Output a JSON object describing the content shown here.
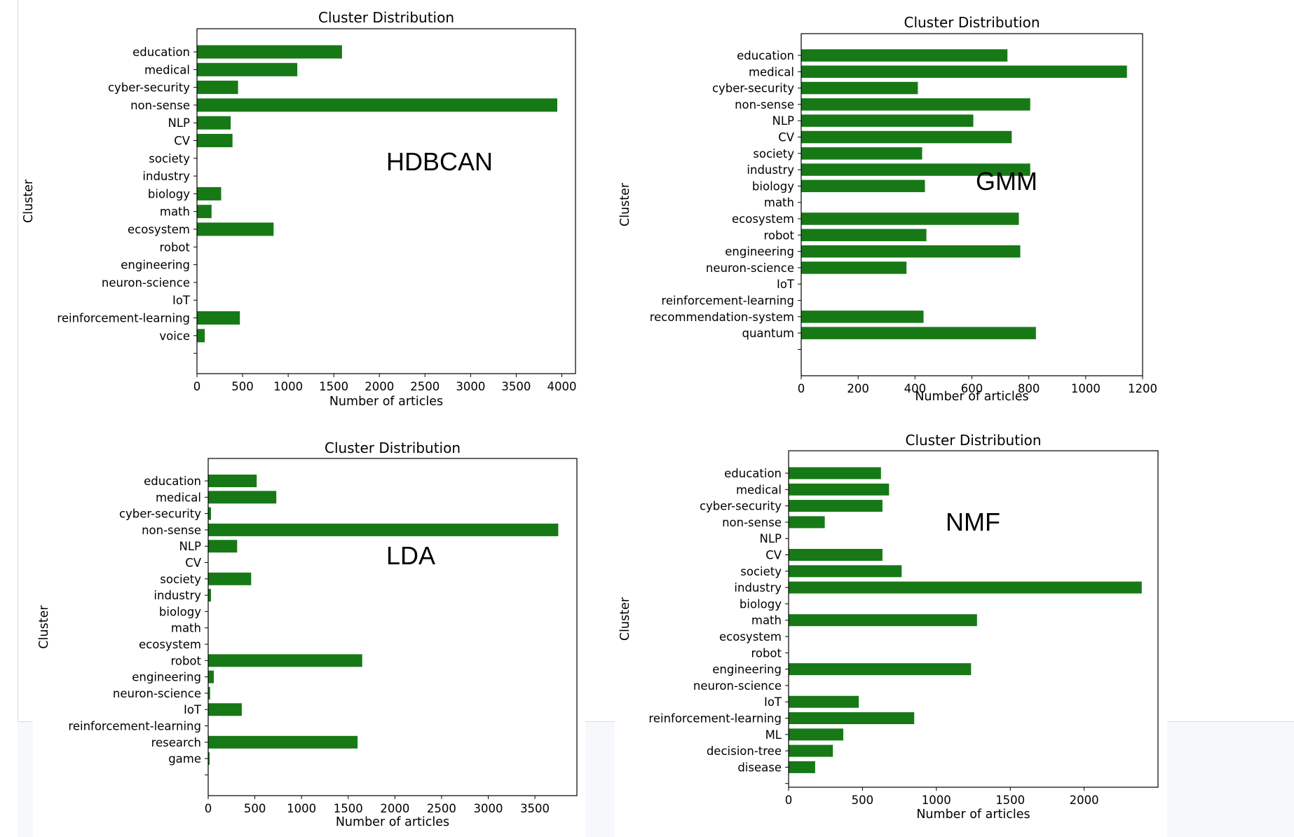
{
  "chart_data": [
    {
      "type": "bar",
      "orientation": "horizontal",
      "title": "Cluster Distribution",
      "annotation": "HDBCAN",
      "xlabel": "Number of articles",
      "ylabel": "Cluster",
      "xlim": [
        0,
        4150
      ],
      "xticks": [
        0,
        500,
        1000,
        1500,
        2000,
        2500,
        3000,
        3500,
        4000
      ],
      "categories": [
        "education",
        "medical",
        "cyber-security",
        "non-sense",
        "NLP",
        "CV",
        "society",
        "industry",
        "biology",
        "math",
        "ecosystem",
        "robot",
        "engineering",
        "neuron-science",
        "IoT",
        "reinforcement-learning",
        "voice",
        ""
      ],
      "values": [
        1590,
        1100,
        450,
        3950,
        370,
        390,
        0,
        0,
        265,
        160,
        840,
        0,
        0,
        0,
        0,
        470,
        85,
        0
      ],
      "color": "#167916",
      "grid": false
    },
    {
      "type": "bar",
      "orientation": "horizontal",
      "title": "Cluster Distribution",
      "annotation": "GMM",
      "xlabel": "Number of articles",
      "ylabel": "Cluster",
      "xlim": [
        0,
        1200
      ],
      "xticks": [
        0,
        200,
        400,
        600,
        800,
        1000,
        1200
      ],
      "categories": [
        "education",
        "medical",
        "cyber-security",
        "non-sense",
        "NLP",
        "CV",
        "society",
        "industry",
        "biology",
        "math",
        "ecosystem",
        "robot",
        "engineering",
        "neuron-science",
        "IoT",
        "reinforcement-learning",
        "recommendation-system",
        "quantum",
        ""
      ],
      "values": [
        725,
        1145,
        410,
        805,
        605,
        740,
        425,
        805,
        435,
        0,
        765,
        440,
        770,
        370,
        0,
        0,
        430,
        825,
        0
      ],
      "color": "#167916",
      "grid": false
    },
    {
      "type": "bar",
      "orientation": "horizontal",
      "title": "Cluster Distribution",
      "annotation": "LDA",
      "xlabel": "Number of articles",
      "ylabel": "Cluster",
      "xlim": [
        0,
        3950
      ],
      "xticks": [
        0,
        500,
        1000,
        1500,
        2000,
        2500,
        3000,
        3500
      ],
      "categories": [
        "education",
        "medical",
        "cyber-security",
        "non-sense",
        "NLP",
        "CV",
        "society",
        "industry",
        "biology",
        "math",
        "ecosystem",
        "robot",
        "engineering",
        "neuron-science",
        "IoT",
        "reinforcement-learning",
        "research",
        "game",
        ""
      ],
      "values": [
        520,
        730,
        30,
        3750,
        310,
        0,
        460,
        30,
        0,
        0,
        0,
        1650,
        60,
        20,
        360,
        0,
        1600,
        15,
        0
      ],
      "color": "#167916",
      "grid": false
    },
    {
      "type": "bar",
      "orientation": "horizontal",
      "title": "Cluster Distribution",
      "annotation": "NMF",
      "xlabel": "Number of articles",
      "ylabel": "Cluster",
      "xlim": [
        0,
        2500
      ],
      "xticks": [
        0,
        500,
        1000,
        1500,
        2000
      ],
      "categories": [
        "education",
        "medical",
        "cyber-security",
        "non-sense",
        "NLP",
        "CV",
        "society",
        "industry",
        "biology",
        "math",
        "ecosystem",
        "robot",
        "engineering",
        "neuron-science",
        "IoT",
        "reinforcement-learning",
        "ML",
        "decision-tree",
        "disease",
        ""
      ],
      "values": [
        625,
        680,
        635,
        245,
        0,
        635,
        765,
        2390,
        0,
        1275,
        0,
        0,
        1235,
        0,
        475,
        850,
        370,
        300,
        180,
        0
      ],
      "color": "#167916",
      "grid": false
    }
  ]
}
